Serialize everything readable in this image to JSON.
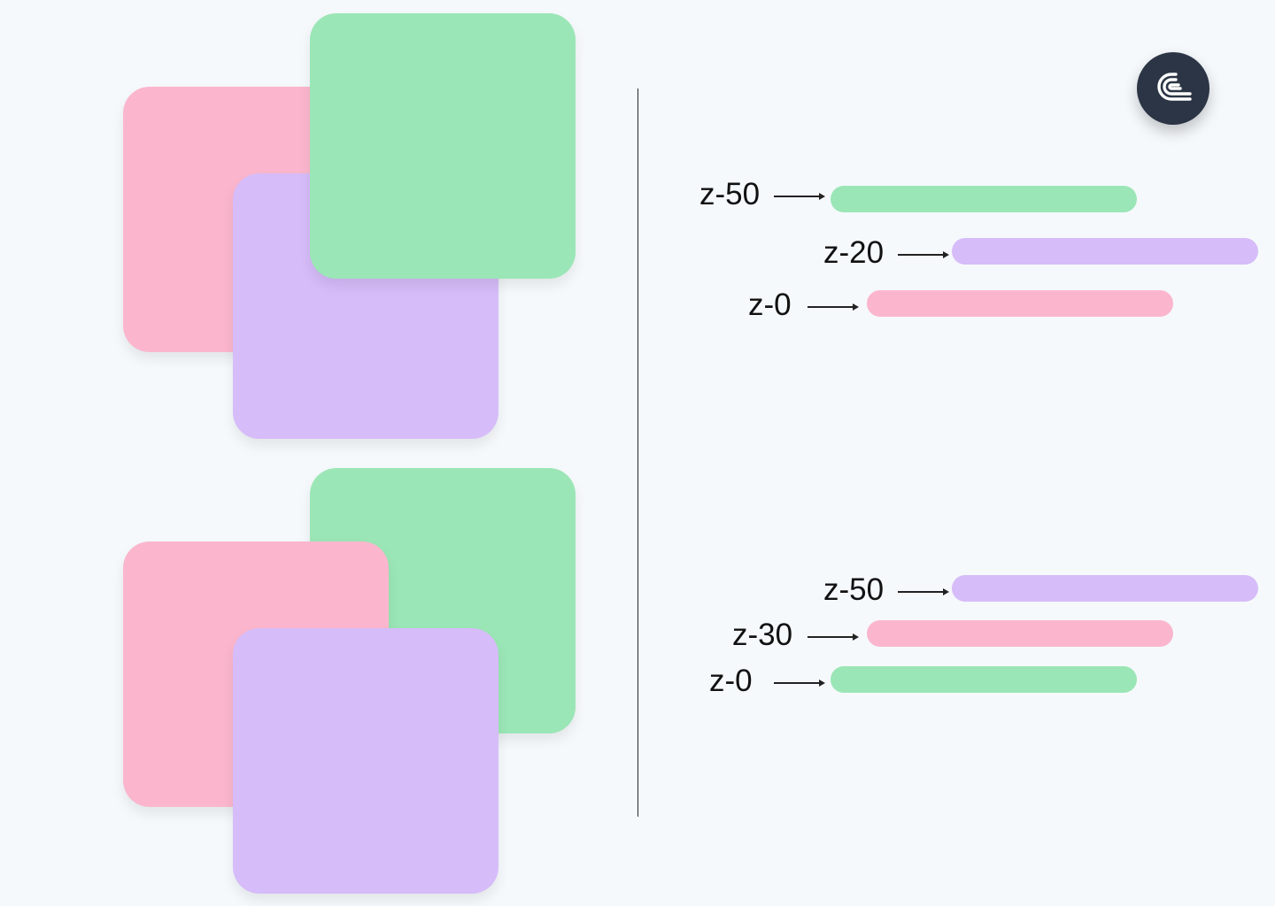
{
  "colors": {
    "green": "#9be6b6",
    "pink": "#fbb6cd",
    "purple": "#d6bcf9",
    "background": "#f5f9fc",
    "logo_bg": "#2c3545"
  },
  "logo": {
    "icon": "brand-logo-icon"
  },
  "top_diagram": {
    "legend": [
      {
        "label": "z-50",
        "color": "green"
      },
      {
        "label": "z-20",
        "color": "purple"
      },
      {
        "label": "z-0",
        "color": "pink"
      }
    ]
  },
  "bottom_diagram": {
    "legend": [
      {
        "label": "z-50",
        "color": "purple"
      },
      {
        "label": "z-30",
        "color": "pink"
      },
      {
        "label": "z-0",
        "color": "green"
      }
    ]
  }
}
